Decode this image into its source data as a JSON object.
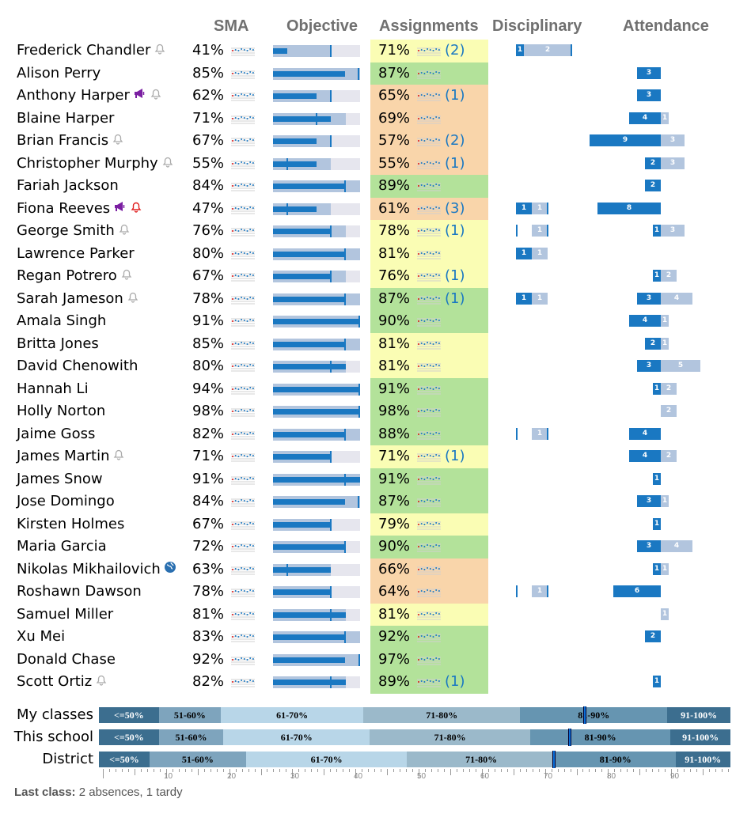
{
  "headers": {
    "sma": "SMA",
    "objective": "Objective",
    "assignments": "Assignments",
    "disciplinary": "Disciplinary",
    "attendance": "Attendance"
  },
  "colors": {
    "green": "#b3e29a",
    "yellow": "#fafdb4",
    "orange": "#f9d5aa",
    "blue": "#1a78c2",
    "lightblue": "#b2c5de"
  },
  "students": [
    {
      "name": "Frederick Chandler",
      "icons": [
        "bell-gray"
      ],
      "sma": "41%",
      "obj": {
        "fill": 0.66,
        "bar": 0.16,
        "tick": 0.66
      },
      "asg": "71%",
      "asg_count": "(2)",
      "asg_color": "yellow",
      "disc": {
        "dark": "1",
        "light": "2",
        "tick": true,
        "dark_w": 0.1,
        "light_w": 0.6
      },
      "att": {
        "dark": "",
        "light": "",
        "dark_w": 0,
        "light_w": 0
      }
    },
    {
      "name": "Alison Perry",
      "icons": [],
      "sma": "85%",
      "obj": {
        "fill": 1.0,
        "bar": 0.83,
        "tick": 0.98
      },
      "asg": "87%",
      "asg_count": "",
      "asg_color": "green",
      "disc": null,
      "att": {
        "dark": "3",
        "light": "",
        "dark_w": 0.3,
        "light_w": 0
      }
    },
    {
      "name": "Anthony Harper",
      "icons": [
        "megaphone-purple",
        "bell-gray"
      ],
      "sma": "62%",
      "obj": {
        "fill": 0.66,
        "bar": 0.5,
        "tick": 0.66
      },
      "asg": "65%",
      "asg_count": "(1)",
      "asg_color": "orange",
      "disc": null,
      "att": {
        "dark": "3",
        "light": "",
        "dark_w": 0.3,
        "light_w": 0
      }
    },
    {
      "name": "Blaine Harper",
      "icons": [],
      "sma": "71%",
      "obj": {
        "fill": 0.84,
        "bar": 0.66,
        "tick": 0.5
      },
      "asg": "69%",
      "asg_count": "",
      "asg_color": "orange",
      "disc": null,
      "att": {
        "dark": "4",
        "light": "1",
        "dark_w": 0.4,
        "light_w": 0.1
      }
    },
    {
      "name": "Brian Francis",
      "icons": [
        "bell-gray"
      ],
      "sma": "67%",
      "obj": {
        "fill": 0.66,
        "bar": 0.5,
        "tick": 0.66
      },
      "asg": "57%",
      "asg_count": "(2)",
      "asg_color": "orange",
      "disc": null,
      "att": {
        "dark": "9",
        "light": "3",
        "dark_w": 0.9,
        "light_w": 0.3
      }
    },
    {
      "name": "Christopher Murphy",
      "icons": [
        "bell-gray"
      ],
      "sma": "55%",
      "obj": {
        "fill": 0.66,
        "bar": 0.5,
        "tick": 0.16
      },
      "asg": "55%",
      "asg_count": "(1)",
      "asg_color": "orange",
      "disc": null,
      "att": {
        "dark": "2",
        "light": "3",
        "dark_w": 0.2,
        "light_w": 0.3
      }
    },
    {
      "name": "Fariah Jackson",
      "icons": [],
      "sma": "84%",
      "obj": {
        "fill": 1.0,
        "bar": 0.83,
        "tick": 0.83
      },
      "asg": "89%",
      "asg_count": "",
      "asg_color": "green",
      "disc": null,
      "att": {
        "dark": "2",
        "light": "",
        "dark_w": 0.2,
        "light_w": 0
      }
    },
    {
      "name": "Fiona Reeves",
      "icons": [
        "megaphone-purple",
        "bell-red"
      ],
      "sma": "47%",
      "obj": {
        "fill": 0.66,
        "bar": 0.5,
        "tick": 0.16
      },
      "asg": "61%",
      "asg_count": "(3)",
      "asg_color": "orange",
      "disc": {
        "dark": "1",
        "light": "1",
        "tick": true,
        "dark_w": 0.2,
        "light_w": 0.2
      },
      "att": {
        "dark": "8",
        "light": "",
        "dark_w": 0.8,
        "light_w": 0
      }
    },
    {
      "name": "George Smith",
      "icons": [
        "bell-gray"
      ],
      "sma": "76%",
      "obj": {
        "fill": 0.84,
        "bar": 0.66,
        "tick": 0.66
      },
      "asg": "78%",
      "asg_count": "(1)",
      "asg_color": "yellow",
      "disc": {
        "dark": "",
        "light": "1",
        "tick": true,
        "dark_w": 0,
        "light_w": 0.2
      },
      "att": {
        "dark": "1",
        "light": "3",
        "dark_w": 0.1,
        "light_w": 0.3
      }
    },
    {
      "name": "Lawrence Parker",
      "icons": [],
      "sma": "80%",
      "obj": {
        "fill": 1.0,
        "bar": 0.83,
        "tick": 0.83
      },
      "asg": "81%",
      "asg_count": "",
      "asg_color": "yellow",
      "disc": {
        "dark": "1",
        "light": "1",
        "tick": false,
        "dark_w": 0.2,
        "light_w": 0.2
      },
      "att": {
        "dark": "",
        "light": "",
        "dark_w": 0,
        "light_w": 0
      }
    },
    {
      "name": "Regan Potrero",
      "icons": [
        "bell-gray"
      ],
      "sma": "67%",
      "obj": {
        "fill": 0.84,
        "bar": 0.66,
        "tick": 0.66
      },
      "asg": "76%",
      "asg_count": "(1)",
      "asg_color": "yellow",
      "disc": null,
      "att": {
        "dark": "1",
        "light": "2",
        "dark_w": 0.1,
        "light_w": 0.2
      }
    },
    {
      "name": "Sarah Jameson",
      "icons": [
        "bell-gray"
      ],
      "sma": "78%",
      "obj": {
        "fill": 1.0,
        "bar": 0.83,
        "tick": 0.83
      },
      "asg": "87%",
      "asg_count": "(1)",
      "asg_color": "green",
      "disc": {
        "dark": "1",
        "light": "1",
        "tick": false,
        "dark_w": 0.2,
        "light_w": 0.2
      },
      "att": {
        "dark": "3",
        "light": "4",
        "dark_w": 0.3,
        "light_w": 0.4
      }
    },
    {
      "name": "Amala Singh",
      "icons": [],
      "sma": "91%",
      "obj": {
        "fill": 1.0,
        "bar": 1.0,
        "tick": 1.0
      },
      "asg": "90%",
      "asg_count": "",
      "asg_color": "green",
      "disc": null,
      "att": {
        "dark": "4",
        "light": "1",
        "dark_w": 0.4,
        "light_w": 0.1
      }
    },
    {
      "name": "Britta Jones",
      "icons": [],
      "sma": "85%",
      "obj": {
        "fill": 1.0,
        "bar": 0.83,
        "tick": 0.83
      },
      "asg": "81%",
      "asg_count": "",
      "asg_color": "yellow",
      "disc": null,
      "att": {
        "dark": "2",
        "light": "1",
        "dark_w": 0.2,
        "light_w": 0.1
      }
    },
    {
      "name": "David Chenowith",
      "icons": [],
      "sma": "80%",
      "obj": {
        "fill": 0.84,
        "bar": 0.84,
        "tick": 0.66
      },
      "asg": "81%",
      "asg_count": "",
      "asg_color": "yellow",
      "disc": null,
      "att": {
        "dark": "3",
        "light": "5",
        "dark_w": 0.3,
        "light_w": 0.5
      }
    },
    {
      "name": "Hannah Li",
      "icons": [],
      "sma": "94%",
      "obj": {
        "fill": 1.0,
        "bar": 1.0,
        "tick": 1.0
      },
      "asg": "91%",
      "asg_count": "",
      "asg_color": "green",
      "disc": null,
      "att": {
        "dark": "1",
        "light": "2",
        "dark_w": 0.1,
        "light_w": 0.2
      }
    },
    {
      "name": "Holly Norton",
      "icons": [],
      "sma": "98%",
      "obj": {
        "fill": 1.0,
        "bar": 1.0,
        "tick": 1.0
      },
      "asg": "98%",
      "asg_count": "",
      "asg_color": "green",
      "disc": null,
      "att": {
        "dark": "",
        "light": "2",
        "dark_w": 0,
        "light_w": 0.2
      }
    },
    {
      "name": "Jaime Goss",
      "icons": [],
      "sma": "82%",
      "obj": {
        "fill": 1.0,
        "bar": 0.83,
        "tick": 0.83
      },
      "asg": "88%",
      "asg_count": "",
      "asg_color": "green",
      "disc": {
        "dark": "",
        "light": "1",
        "tick": true,
        "dark_w": 0,
        "light_w": 0.2
      },
      "att": {
        "dark": "4",
        "light": "",
        "dark_w": 0.4,
        "light_w": 0
      }
    },
    {
      "name": "James Martin",
      "icons": [
        "bell-gray"
      ],
      "sma": "71%",
      "obj": {
        "fill": 0.66,
        "bar": 0.66,
        "tick": 0.66
      },
      "asg": "71%",
      "asg_count": "(1)",
      "asg_color": "yellow",
      "disc": null,
      "att": {
        "dark": "4",
        "light": "2",
        "dark_w": 0.4,
        "light_w": 0.2
      }
    },
    {
      "name": "James Snow",
      "icons": [],
      "sma": "91%",
      "obj": {
        "fill": 1.0,
        "bar": 1.0,
        "tick": 0.83
      },
      "asg": "91%",
      "asg_count": "",
      "asg_color": "green",
      "disc": null,
      "att": {
        "dark": "1",
        "light": "",
        "dark_w": 0.1,
        "light_w": 0
      }
    },
    {
      "name": "Jose Domingo",
      "icons": [],
      "sma": "84%",
      "obj": {
        "fill": 1.0,
        "bar": 0.83,
        "tick": 0.98
      },
      "asg": "87%",
      "asg_count": "",
      "asg_color": "green",
      "disc": null,
      "att": {
        "dark": "3",
        "light": "1",
        "dark_w": 0.3,
        "light_w": 0.1
      }
    },
    {
      "name": "Kirsten Holmes",
      "icons": [],
      "sma": "67%",
      "obj": {
        "fill": 0.66,
        "bar": 0.66,
        "tick": 0.66
      },
      "asg": "79%",
      "asg_count": "",
      "asg_color": "yellow",
      "disc": null,
      "att": {
        "dark": "1",
        "light": "",
        "dark_w": 0.1,
        "light_w": 0
      }
    },
    {
      "name": "Maria Garcia",
      "icons": [],
      "sma": "72%",
      "obj": {
        "fill": 0.84,
        "bar": 0.84,
        "tick": 0.83
      },
      "asg": "90%",
      "asg_count": "",
      "asg_color": "green",
      "disc": null,
      "att": {
        "dark": "3",
        "light": "4",
        "dark_w": 0.3,
        "light_w": 0.4
      }
    },
    {
      "name": "Nikolas Mikhailovich",
      "icons": [
        "globe-blue"
      ],
      "sma": "63%",
      "obj": {
        "fill": 0.66,
        "bar": 0.66,
        "tick": 0.16
      },
      "asg": "66%",
      "asg_count": "",
      "asg_color": "orange",
      "disc": null,
      "att": {
        "dark": "1",
        "light": "1",
        "dark_w": 0.1,
        "light_w": 0.1
      }
    },
    {
      "name": "Roshawn Dawson",
      "icons": [],
      "sma": "78%",
      "obj": {
        "fill": 0.66,
        "bar": 0.66,
        "tick": 0.66
      },
      "asg": "64%",
      "asg_count": "",
      "asg_color": "orange",
      "disc": {
        "dark": "",
        "light": "1",
        "tick": true,
        "dark_w": 0,
        "light_w": 0.2
      },
      "att": {
        "dark": "6",
        "light": "",
        "dark_w": 0.6,
        "light_w": 0
      }
    },
    {
      "name": "Samuel Miller",
      "icons": [],
      "sma": "81%",
      "obj": {
        "fill": 0.84,
        "bar": 0.84,
        "tick": 0.66
      },
      "asg": "81%",
      "asg_count": "",
      "asg_color": "yellow",
      "disc": null,
      "att": {
        "dark": "",
        "light": "1",
        "dark_w": 0,
        "light_w": 0.1
      }
    },
    {
      "name": "Xu Mei",
      "icons": [],
      "sma": "83%",
      "obj": {
        "fill": 1.0,
        "bar": 0.83,
        "tick": 0.83
      },
      "asg": "92%",
      "asg_count": "",
      "asg_color": "green",
      "disc": null,
      "att": {
        "dark": "2",
        "light": "",
        "dark_w": 0.2,
        "light_w": 0
      }
    },
    {
      "name": "Donald Chase",
      "icons": [],
      "sma": "92%",
      "obj": {
        "fill": 1.0,
        "bar": 0.83,
        "tick": 1.0
      },
      "asg": "97%",
      "asg_count": "",
      "asg_color": "green",
      "disc": null,
      "att": {
        "dark": "",
        "light": "",
        "dark_w": 0,
        "light_w": 0
      }
    },
    {
      "name": "Scott Ortiz",
      "icons": [
        "bell-gray"
      ],
      "sma": "82%",
      "obj": {
        "fill": 0.84,
        "bar": 0.84,
        "tick": 0.66
      },
      "asg": "89%",
      "asg_count": "(1)",
      "asg_color": "green",
      "disc": null,
      "att": {
        "dark": "1",
        "light": "",
        "dark_w": 0.1,
        "light_w": 0
      }
    }
  ],
  "distributions": [
    {
      "label": "My classes",
      "marker": 0.77,
      "segments": [
        {
          "text": "<=50%",
          "w": 0.095,
          "bg": "#3c6e8f",
          "fg": "#ffffff"
        },
        {
          "text": "51-60%",
          "w": 0.098,
          "bg": "#7ea4bd",
          "fg": "#000000"
        },
        {
          "text": "61-70%",
          "w": 0.226,
          "bg": "#b8d6e8",
          "fg": "#000000"
        },
        {
          "text": "71-80%",
          "w": 0.248,
          "bg": "#9bb9ca",
          "fg": "#000000"
        },
        {
          "text": "81-90%",
          "w": 0.233,
          "bg": "#6695b1",
          "fg": "#000000"
        },
        {
          "text": "91-100%",
          "w": 0.1,
          "bg": "#3c6e8f",
          "fg": "#ffffff"
        }
      ]
    },
    {
      "label": "This school",
      "marker": 0.745,
      "segments": [
        {
          "text": "<=50%",
          "w": 0.095,
          "bg": "#3c6e8f",
          "fg": "#ffffff"
        },
        {
          "text": "51-60%",
          "w": 0.102,
          "bg": "#7ea4bd",
          "fg": "#000000"
        },
        {
          "text": "61-70%",
          "w": 0.232,
          "bg": "#b8d6e8",
          "fg": "#000000"
        },
        {
          "text": "71-80%",
          "w": 0.254,
          "bg": "#9bb9ca",
          "fg": "#000000"
        },
        {
          "text": "81-90%",
          "w": 0.222,
          "bg": "#6695b1",
          "fg": "#000000"
        },
        {
          "text": "91-100%",
          "w": 0.095,
          "bg": "#3c6e8f",
          "fg": "#ffffff"
        }
      ]
    },
    {
      "label": "District",
      "marker": 0.72,
      "segments": [
        {
          "text": "<=50%",
          "w": 0.08,
          "bg": "#3c6e8f",
          "fg": "#ffffff"
        },
        {
          "text": "51-60%",
          "w": 0.153,
          "bg": "#7ea4bd",
          "fg": "#000000"
        },
        {
          "text": "61-70%",
          "w": 0.255,
          "bg": "#b8d6e8",
          "fg": "#000000"
        },
        {
          "text": "71-80%",
          "w": 0.235,
          "bg": "#9bb9ca",
          "fg": "#000000"
        },
        {
          "text": "81-90%",
          "w": 0.19,
          "bg": "#6695b1",
          "fg": "#000000"
        },
        {
          "text": "91-100%",
          "w": 0.087,
          "bg": "#3c6e8f",
          "fg": "#ffffff"
        }
      ]
    }
  ],
  "axis_ticks": [
    "10",
    "20",
    "30",
    "40",
    "50",
    "60",
    "70",
    "80",
    "90"
  ],
  "footer": {
    "label": "Last class:",
    "value": " 2 absences, 1 tardy"
  }
}
